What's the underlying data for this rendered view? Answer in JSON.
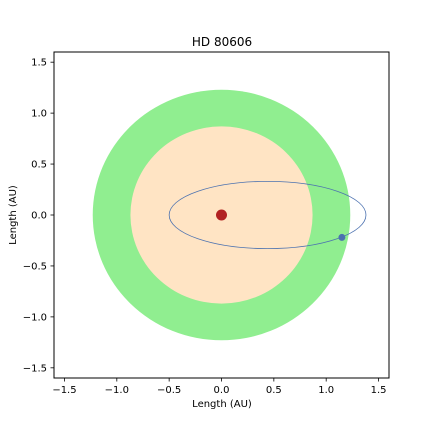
{
  "chart_data": {
    "type": "scatter",
    "title": "HD 80606",
    "xlabel": "Length (AU)",
    "ylabel": "Length (AU)",
    "xlim": [
      -1.6,
      1.6
    ],
    "ylim": [
      -1.6,
      1.6
    ],
    "xticks": [
      {
        "value": -1.5,
        "label": "−1.5"
      },
      {
        "value": -1.0,
        "label": "−1.0"
      },
      {
        "value": -0.5,
        "label": "−0.5"
      },
      {
        "value": 0.0,
        "label": "0.0"
      },
      {
        "value": 0.5,
        "label": "0.5"
      },
      {
        "value": 1.0,
        "label": "1.0"
      },
      {
        "value": 1.5,
        "label": "1.5"
      }
    ],
    "yticks": [
      {
        "value": 1.5,
        "label": "1.5"
      },
      {
        "value": 1.0,
        "label": "1.0"
      },
      {
        "value": 0.5,
        "label": "0.5"
      },
      {
        "value": 0.0,
        "label": "0.0"
      },
      {
        "value": -0.5,
        "label": "−0.5"
      },
      {
        "value": -1.0,
        "label": "−1.0"
      },
      {
        "value": -1.5,
        "label": "−1.5"
      }
    ],
    "grid": false,
    "regions": [
      {
        "shape": "circle",
        "cx": 0.0,
        "cy": 0.0,
        "r": 1.23,
        "color": "#90ee90"
      },
      {
        "shape": "circle",
        "cx": 0.0,
        "cy": 0.0,
        "r": 0.87,
        "color": "#ffe4c4"
      }
    ],
    "orbit": {
      "cx": 0.44,
      "cy": 0.0,
      "rx": 0.94,
      "ry": 0.33,
      "color": "#4c72b0"
    },
    "star": {
      "x": 0.0,
      "y": 0.0,
      "color": "#b22222"
    },
    "planet": {
      "x": 1.15,
      "y": -0.22,
      "color": "#4c72b0"
    }
  }
}
